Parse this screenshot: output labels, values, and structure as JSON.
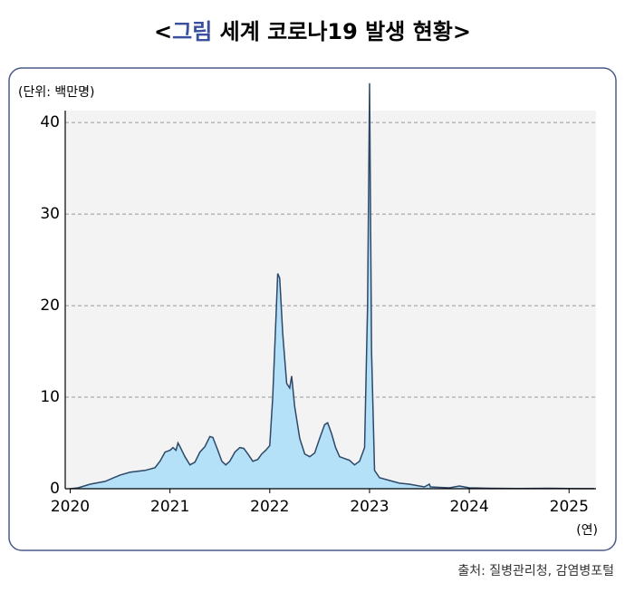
{
  "chart_data": {
    "type": "area",
    "title_parts": [
      "<",
      "그림",
      " 세계 코로나19 발생 현황>"
    ],
    "y_unit": "(단위: 백만명)",
    "x_unit": "(연)",
    "source": "출처: 질병관리청, 감염병포털",
    "x": [
      2020.0,
      2020.08,
      2020.2,
      2020.35,
      2020.5,
      2020.6,
      2020.75,
      2020.85,
      2020.9,
      2020.95,
      2021.0,
      2021.03,
      2021.06,
      2021.08,
      2021.1,
      2021.15,
      2021.2,
      2021.25,
      2021.3,
      2021.35,
      2021.4,
      2021.43,
      2021.48,
      2021.52,
      2021.56,
      2021.6,
      2021.65,
      2021.7,
      2021.74,
      2021.78,
      2021.83,
      2021.88,
      2021.92,
      2021.96,
      2022.0,
      2022.03,
      2022.06,
      2022.08,
      2022.1,
      2022.13,
      2022.17,
      2022.2,
      2022.22,
      2022.25,
      2022.3,
      2022.35,
      2022.4,
      2022.45,
      2022.5,
      2022.55,
      2022.58,
      2022.62,
      2022.66,
      2022.7,
      2022.75,
      2022.8,
      2022.85,
      2022.9,
      2022.95,
      2022.98,
      2023.0,
      2023.02,
      2023.05,
      2023.1,
      2023.2,
      2023.3,
      2023.4,
      2023.5,
      2023.55,
      2023.6,
      2023.61,
      2023.7,
      2023.8,
      2023.9,
      2023.95,
      2024.0,
      2024.2,
      2024.5,
      2024.8,
      2025.0,
      2025.25
    ],
    "series": [
      {
        "color": "#b5e1f8",
        "line_color": "#2d4868",
        "values": [
          0,
          0.1,
          0.5,
          0.8,
          1.5,
          1.8,
          2.0,
          2.3,
          3.0,
          4.0,
          4.2,
          4.5,
          4.2,
          5.0,
          4.6,
          3.5,
          2.6,
          2.9,
          4.0,
          4.6,
          5.7,
          5.6,
          4.2,
          3.0,
          2.6,
          3.0,
          4.0,
          4.5,
          4.4,
          3.8,
          3.0,
          3.2,
          3.8,
          4.2,
          4.7,
          10,
          18,
          23.5,
          23,
          17,
          11.5,
          11,
          12.3,
          9,
          5.5,
          3.8,
          3.5,
          3.9,
          5.5,
          7.0,
          7.2,
          6.0,
          4.5,
          3.5,
          3.3,
          3.1,
          2.6,
          3.0,
          4.5,
          20,
          44.3,
          15,
          2.0,
          1.2,
          0.9,
          0.6,
          0.5,
          0.3,
          0.2,
          0.5,
          0.2,
          0.15,
          0.1,
          0.3,
          0.2,
          0.1,
          0.05,
          0.03,
          0.05,
          0.02,
          0.01
        ]
      }
    ],
    "xlim": [
      2019.95,
      2025.27
    ],
    "ylim": [
      0,
      41.3
    ],
    "xticks": [
      2020,
      2021,
      2022,
      2023,
      2024,
      2025
    ],
    "yticks": [
      0,
      10,
      20,
      30,
      40
    ],
    "grid": true
  }
}
